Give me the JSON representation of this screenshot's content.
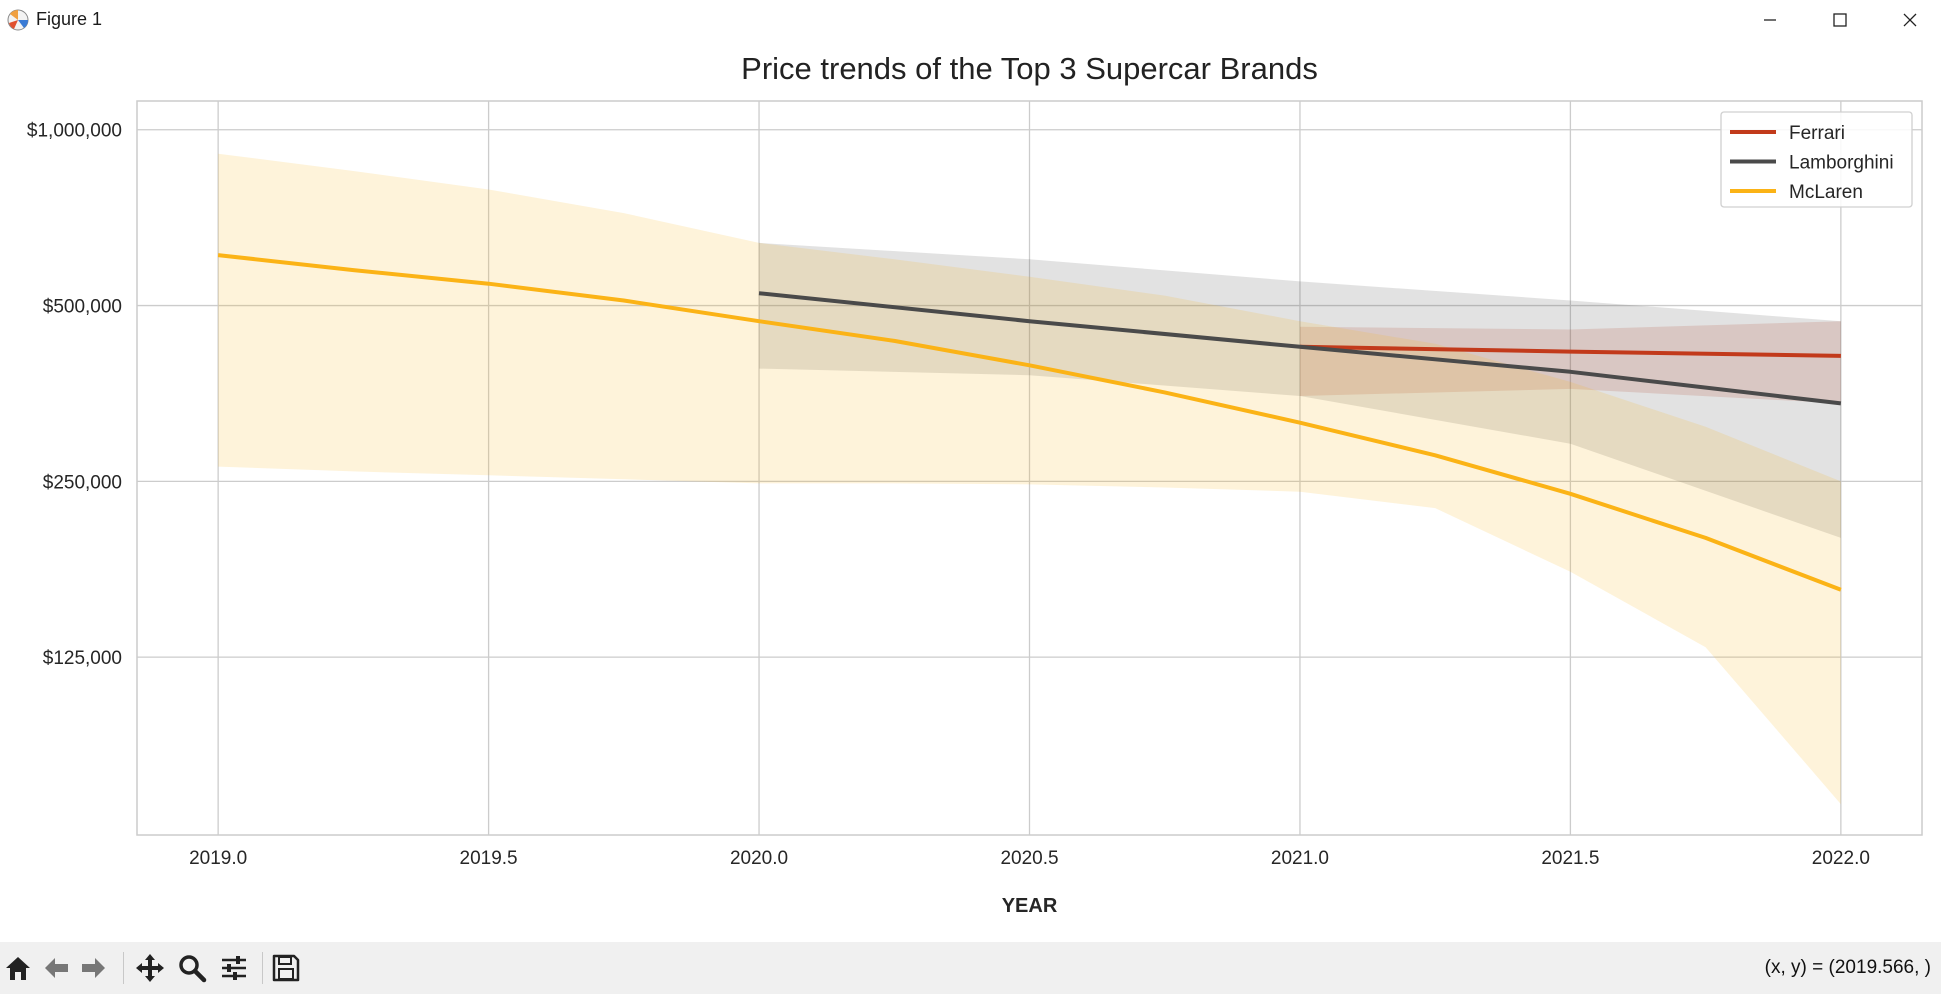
{
  "window": {
    "title": "Figure 1",
    "icons": {
      "app": "matplotlib-icon",
      "minimize": "minimize-icon",
      "maximize": "maximize-icon",
      "close": "close-icon"
    }
  },
  "toolbar": {
    "buttons": [
      "home-icon",
      "back-arrow-icon",
      "forward-arrow-icon",
      "pan-icon",
      "zoom-icon",
      "configure-subplots-icon",
      "save-icon"
    ],
    "coords_text": "(x, y) = (2019.566, )"
  },
  "chart_data": {
    "type": "line",
    "title": "Price trends of the Top 3 Supercar Brands",
    "xlabel": "YEAR",
    "ylabel": "",
    "xlim": [
      2018.85,
      2022.15
    ],
    "ylim": [
      62000,
      1120000
    ],
    "y_scale": "log",
    "x_ticks": [
      2019.0,
      2019.5,
      2020.0,
      2020.5,
      2021.0,
      2021.5,
      2022.0
    ],
    "x_tick_labels": [
      "2019.0",
      "2019.5",
      "2020.0",
      "2020.5",
      "2021.0",
      "2021.5",
      "2022.0"
    ],
    "y_ticks": [
      1000000,
      500000,
      250000,
      125000
    ],
    "y_tick_labels": [
      "$1,000,000",
      "$500,000",
      "$250,000",
      "$125,000"
    ],
    "grid": true,
    "legend_position": "top-right",
    "series": [
      {
        "name": "Ferrari",
        "color": "#c23a1b",
        "x": [
          2021.0,
          2021.5,
          2022.0
        ],
        "y": [
          425000,
          417000,
          410000
        ],
        "band_upper": [
          460000,
          455000,
          470000
        ],
        "band_lower": [
          350000,
          360000,
          340000
        ]
      },
      {
        "name": "Lamborghini",
        "color": "#4a4a4a",
        "x": [
          2020.0,
          2020.5,
          2021.0,
          2021.5,
          2022.0
        ],
        "y": [
          525000,
          470000,
          425000,
          385000,
          340000
        ],
        "band_upper": [
          640000,
          600000,
          550000,
          510000,
          470000
        ],
        "band_lower": [
          390000,
          380000,
          350000,
          290000,
          200000
        ]
      },
      {
        "name": "McLaren",
        "color": "#fbb316",
        "x": [
          2019.0,
          2019.25,
          2019.5,
          2019.75,
          2020.0,
          2020.25,
          2020.5,
          2020.75,
          2021.0,
          2021.25,
          2021.5,
          2021.75,
          2022.0
        ],
        "y": [
          610000,
          575000,
          545000,
          510000,
          470000,
          435000,
          395000,
          355000,
          315000,
          277000,
          238000,
          200000,
          163000
        ],
        "band_upper": [
          910000,
          850000,
          790000,
          720000,
          640000,
          600000,
          560000,
          520000,
          470000,
          430000,
          370000,
          310000,
          250000
        ],
        "band_lower": [
          265000,
          260000,
          256000,
          252000,
          248000,
          248000,
          247000,
          244000,
          240000,
          225000,
          175000,
          130000,
          70000
        ]
      }
    ]
  }
}
